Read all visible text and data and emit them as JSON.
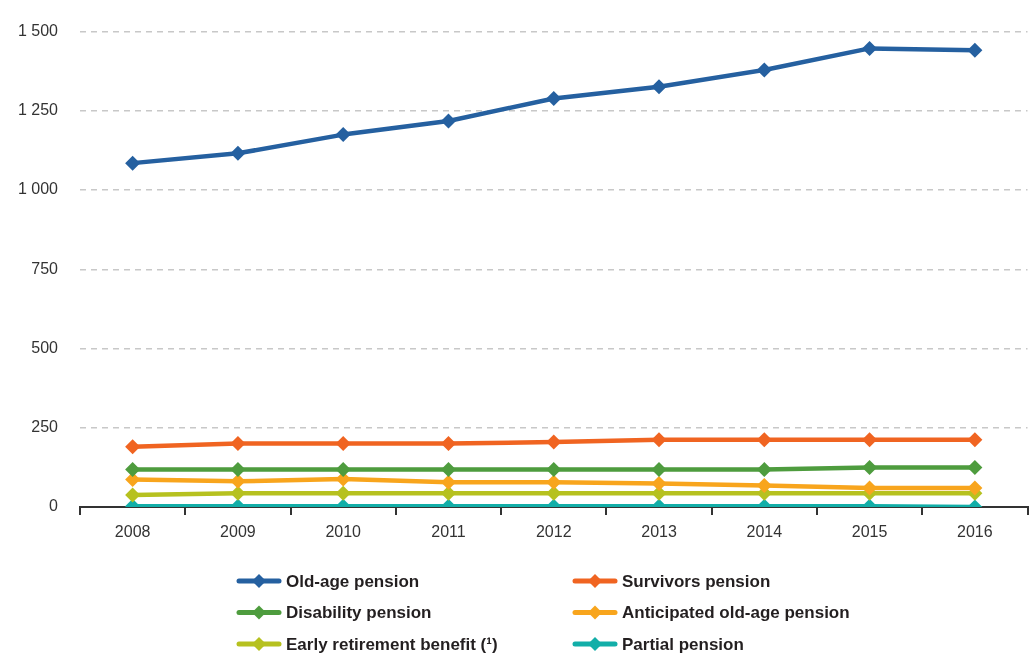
{
  "chart_data": {
    "type": "line",
    "categories": [
      "2008",
      "2009",
      "2010",
      "2011",
      "2012",
      "2013",
      "2014",
      "2015",
      "2016"
    ],
    "series": [
      {
        "name": "Old-age pension",
        "color": "#2560a0",
        "values": [
          1085,
          1116,
          1175,
          1218,
          1289,
          1326,
          1379,
          1447,
          1441
        ]
      },
      {
        "name": "Survivors pension",
        "color": "#f06421",
        "values": [
          190,
          200,
          200,
          200,
          205,
          212,
          212,
          212,
          212
        ]
      },
      {
        "name": "Disability pension",
        "color": "#4e9c3e",
        "values": [
          118,
          118,
          118,
          118,
          118,
          118,
          118,
          125,
          125
        ]
      },
      {
        "name": "Anticipated old-age pension",
        "color": "#f8a51d",
        "values": [
          87,
          81,
          88,
          78,
          78,
          74,
          68,
          60,
          60
        ]
      },
      {
        "name": "Early retirement benefit (¹)",
        "color": "#b6c11f",
        "values": [
          38,
          43,
          43,
          43,
          43,
          43,
          43,
          43,
          43
        ]
      },
      {
        "name": "Partial pension",
        "color": "#12aea8",
        "values": [
          2,
          2,
          2,
          2,
          2,
          2,
          2,
          2,
          0
        ]
      }
    ],
    "ylim": [
      0,
      1500
    ],
    "yticks": [
      {
        "value": 1500,
        "label": "1 500"
      },
      {
        "value": 1250,
        "label": "1 250"
      },
      {
        "value": 1000,
        "label": "1 000"
      },
      750,
      500,
      250,
      0
    ],
    "grid": "y",
    "legend": "bottom",
    "marker": "diamond",
    "line_style": "solid"
  }
}
